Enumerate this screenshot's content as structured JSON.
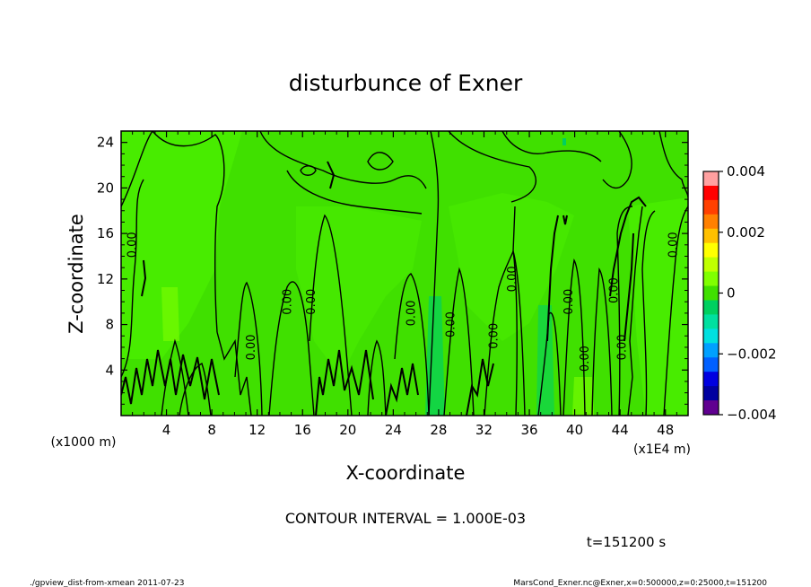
{
  "chart_data": {
    "type": "heatmap",
    "title": "disturbunce of Exner",
    "xlabel": "X-coordinate",
    "ylabel": "Z-coordinate",
    "x_unit_label": "(x1E4 m)",
    "y_unit_label": "(x1000 m)",
    "xlim": [
      0,
      50
    ],
    "ylim": [
      0,
      25
    ],
    "x_ticks": [
      4,
      8,
      12,
      16,
      20,
      24,
      28,
      32,
      36,
      40,
      44,
      48
    ],
    "x_tick_labels": [
      "4",
      "8",
      "12",
      "16",
      "20",
      "24",
      "28",
      "32",
      "36",
      "40",
      "44",
      "48"
    ],
    "y_ticks": [
      4,
      8,
      12,
      16,
      20,
      24
    ],
    "y_tick_labels": [
      "4",
      "8",
      "12",
      "16",
      "20",
      "24"
    ],
    "contour_interval_text": "CONTOUR INTERVAL = 1.000E-03",
    "contour_label": "0.00",
    "time_text": "t=151200 s",
    "colorbar": {
      "min": -0.004,
      "max": 0.004,
      "tick_values": [
        0.004,
        0.002,
        0,
        -0.002,
        -0.004
      ],
      "tick_labels": [
        "0.004",
        "0.002",
        "0",
        "−0.002",
        "−0.004"
      ],
      "colors": [
        "#ffa0a0",
        "#ff0000",
        "#ff4000",
        "#ff8000",
        "#ffc000",
        "#ffff00",
        "#c0ff00",
        "#80ff00",
        "#40e000",
        "#00d060",
        "#00e0a0",
        "#00e0e0",
        "#00a0ff",
        "#0060ff",
        "#0000e0",
        "#0000a0",
        "#600090"
      ]
    },
    "contour_labels_x": [
      1.3,
      11.8,
      15.0,
      17.1,
      25.9,
      29.4,
      33.2,
      34.8,
      39.8,
      41.2,
      43.8,
      44.5,
      49.0
    ],
    "contour_labels_z": [
      15,
      6,
      10,
      10,
      9,
      8,
      7,
      12,
      10,
      5,
      11,
      6,
      15
    ]
  },
  "footer": {
    "left": "./gpview_dist-from-xmean  2011-07-23",
    "right": "MarsCond_Exner.nc@Exner,x=0:500000,z=0:25000,t=151200"
  }
}
